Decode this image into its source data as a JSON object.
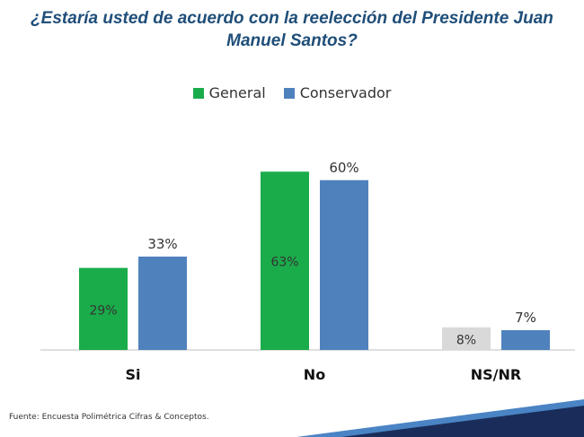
{
  "chart_data": {
    "type": "bar",
    "title": "¿Estaría usted de acuerdo con la reelección del Presidente Juan Manuel Santos?",
    "categories": [
      "Si",
      "No",
      "NS/NR"
    ],
    "series": [
      {
        "name": "General",
        "values": [
          29,
          63,
          8
        ],
        "labels": [
          "29%",
          "63%",
          "8%"
        ]
      },
      {
        "name": "Conservador",
        "values": [
          33,
          60,
          7
        ],
        "labels": [
          "33%",
          "60%",
          "7%"
        ]
      }
    ],
    "ylim": [
      0,
      65
    ],
    "xlabel": "",
    "ylabel": "",
    "grid": false,
    "legend": "top-center"
  },
  "colors": {
    "general": "#1aac4a",
    "general_highlight": "#d9d9d9",
    "conservador": "#4f81bd",
    "title": "#1f4e79",
    "band_dark": "#1a2d5a",
    "band_light": "#4a84c4"
  },
  "source": "Fuente: Encuesta Polimétrica Cifras & Conceptos."
}
